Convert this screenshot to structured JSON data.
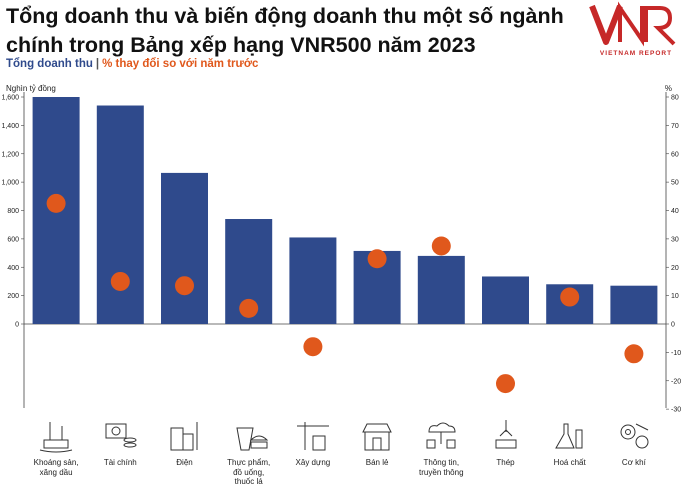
{
  "header": {
    "title": "Tổng doanh thu và biến động doanh thu một số ngành chính trong Bảng xếp hạng VNR500 năm 2023",
    "legend_bar": "Tổng doanh thu",
    "legend_sep": "|",
    "legend_pct": "% thay đổi so với năm trước",
    "logo_mark": "VNR",
    "logo_text": "VIETNAM REPORT"
  },
  "colors": {
    "bar": "#2f4a8c",
    "dot": "#e0581c",
    "axis": "#444444",
    "title": "#111111"
  },
  "chart_data": {
    "type": "bar",
    "categories": [
      "Khoáng sản, xăng dầu",
      "Tài chính",
      "Điện",
      "Thực phẩm, đồ uống, thuốc lá",
      "Xây dựng",
      "Bán lẻ",
      "Thông tin, truyền thông",
      "Thép",
      "Hoá chất",
      "Cơ khí"
    ],
    "category_lines": [
      [
        "Khoáng sản,",
        "xăng dầu"
      ],
      [
        "Tài chính"
      ],
      [
        "Điện"
      ],
      [
        "Thực phẩm,",
        "đồ uống,",
        "thuốc lá"
      ],
      [
        "Xây dựng"
      ],
      [
        "Bán lẻ"
      ],
      [
        "Thông tin,",
        "truyền thông"
      ],
      [
        "Thép"
      ],
      [
        "Hoá chất"
      ],
      [
        "Cơ khí"
      ]
    ],
    "icons": [
      "oil-rig-icon",
      "money-icon",
      "power-plant-icon",
      "food-drink-icon",
      "construction-crane-icon",
      "retail-store-icon",
      "network-icon",
      "steel-hook-icon",
      "chemical-flask-icon",
      "gears-tools-icon"
    ],
    "series": [
      {
        "name": "Tổng doanh thu",
        "axis": "left",
        "type": "bar",
        "values": [
          1600,
          1540,
          1065,
          740,
          610,
          515,
          480,
          335,
          280,
          270
        ]
      },
      {
        "name": "% thay đổi so với năm trước",
        "axis": "right",
        "type": "scatter",
        "values": [
          42.5,
          15,
          13.5,
          5.5,
          -8,
          23,
          27.5,
          -21,
          9.5,
          -10.5
        ]
      }
    ],
    "ylabel": "Nghìn tỷ đồng",
    "y2label": "%",
    "ylim": [
      -600,
      1600
    ],
    "yticks": [
      0,
      200,
      400,
      600,
      800,
      1000,
      1200,
      1400,
      1600
    ],
    "y2lim": [
      -30,
      80
    ],
    "y2ticks": [
      -30,
      -20,
      -10,
      0,
      10,
      20,
      30,
      40,
      50,
      60,
      70,
      80
    ],
    "grid": true
  }
}
